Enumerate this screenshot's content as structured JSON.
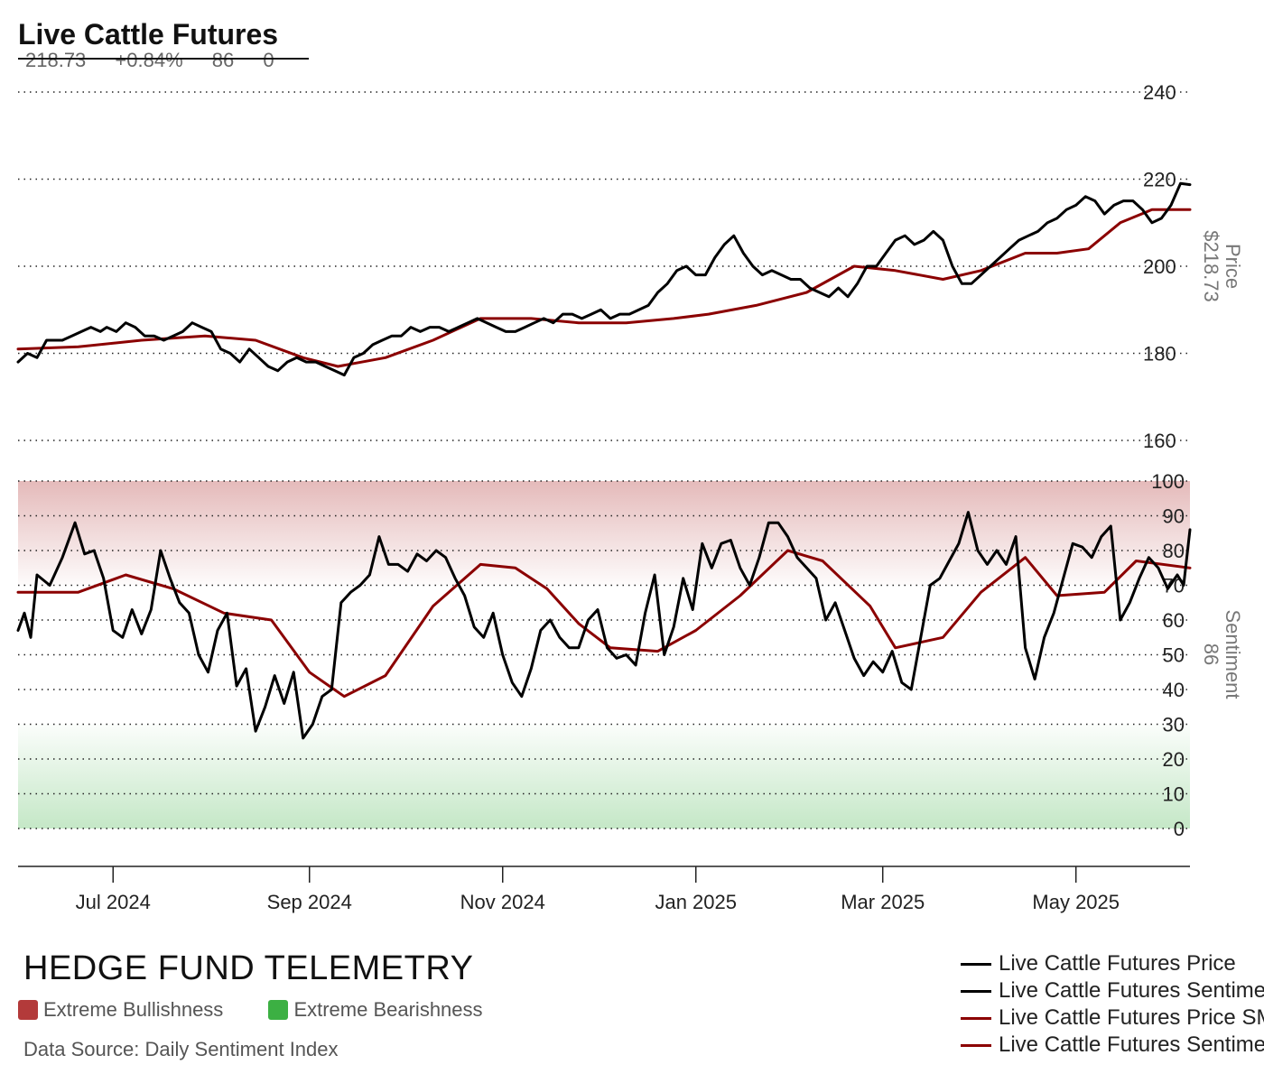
{
  "title": "Live Cattle Futures",
  "stats": [
    "218.73",
    "+0.84%",
    "86",
    "0"
  ],
  "brand": "HEDGE FUND TELEMETRY",
  "source": "Data Source: Daily Sentiment Index",
  "zones": {
    "bull": {
      "label": "Extreme Bullishness",
      "color": "#b33a3a"
    },
    "bear": {
      "label": "Extreme Bearishness",
      "color": "#3cb043"
    }
  },
  "legend": [
    {
      "label": "Live Cattle Futures Price",
      "color": "#000000"
    },
    {
      "label": "Live Cattle Futures Sentiment",
      "color": "#000000"
    },
    {
      "label": "Live Cattle Futures Price SMA",
      "color": "#8b0000"
    },
    {
      "label": "Live Cattle Futures Sentiment SMA",
      "color": "#8b0000"
    }
  ],
  "chart_data": [
    {
      "type": "line",
      "panel": "price",
      "ylabel": "Price",
      "last_value_label": "$218.73",
      "yticks": [
        160,
        180,
        200,
        220,
        240
      ],
      "ylim": [
        160,
        240
      ],
      "xlim": [
        "2024-06-01",
        "2025-06-06"
      ],
      "xticks": [
        {
          "date": "2024-07-01",
          "label": "Jul 2024"
        },
        {
          "date": "2024-09-01",
          "label": "Sep 2024"
        },
        {
          "date": "2024-11-01",
          "label": "Nov 2024"
        },
        {
          "date": "2025-01-01",
          "label": "Jan 2025"
        },
        {
          "date": "2025-03-01",
          "label": "Mar 2025"
        },
        {
          "date": "2025-05-01",
          "label": "May 2025"
        }
      ],
      "series": [
        {
          "name": "Live Cattle Futures Price",
          "color": "#000000",
          "x": [
            "2024-06-01",
            "2024-06-04",
            "2024-06-07",
            "2024-06-10",
            "2024-06-12",
            "2024-06-15",
            "2024-06-18",
            "2024-06-21",
            "2024-06-24",
            "2024-06-27",
            "2024-06-29",
            "2024-07-02",
            "2024-07-05",
            "2024-07-08",
            "2024-07-11",
            "2024-07-14",
            "2024-07-17",
            "2024-07-20",
            "2024-07-23",
            "2024-07-26",
            "2024-07-29",
            "2024-08-01",
            "2024-08-04",
            "2024-08-07",
            "2024-08-10",
            "2024-08-13",
            "2024-08-16",
            "2024-08-19",
            "2024-08-22",
            "2024-08-25",
            "2024-08-28",
            "2024-08-31",
            "2024-09-03",
            "2024-09-06",
            "2024-09-09",
            "2024-09-12",
            "2024-09-15",
            "2024-09-18",
            "2024-09-21",
            "2024-09-24",
            "2024-09-27",
            "2024-09-30",
            "2024-10-03",
            "2024-10-06",
            "2024-10-09",
            "2024-10-12",
            "2024-10-15",
            "2024-10-18",
            "2024-10-21",
            "2024-10-24",
            "2024-10-27",
            "2024-10-30",
            "2024-11-02",
            "2024-11-05",
            "2024-11-08",
            "2024-11-11",
            "2024-11-14",
            "2024-11-17",
            "2024-11-20",
            "2024-11-23",
            "2024-11-26",
            "2024-11-29",
            "2024-12-02",
            "2024-12-05",
            "2024-12-08",
            "2024-12-11",
            "2024-12-14",
            "2024-12-17",
            "2024-12-20",
            "2024-12-23",
            "2024-12-26",
            "2024-12-29",
            "2025-01-01",
            "2025-01-04",
            "2025-01-07",
            "2025-01-10",
            "2025-01-13",
            "2025-01-16",
            "2025-01-19",
            "2025-01-22",
            "2025-01-25",
            "2025-01-28",
            "2025-01-31",
            "2025-02-03",
            "2025-02-06",
            "2025-02-09",
            "2025-02-12",
            "2025-02-15",
            "2025-02-18",
            "2025-02-21",
            "2025-02-24",
            "2025-02-27",
            "2025-03-02",
            "2025-03-05",
            "2025-03-08",
            "2025-03-11",
            "2025-03-14",
            "2025-03-17",
            "2025-03-20",
            "2025-03-23",
            "2025-03-26",
            "2025-03-29",
            "2025-04-01",
            "2025-04-04",
            "2025-04-07",
            "2025-04-10",
            "2025-04-13",
            "2025-04-16",
            "2025-04-19",
            "2025-04-22",
            "2025-04-25",
            "2025-04-28",
            "2025-05-01",
            "2025-05-04",
            "2025-05-07",
            "2025-05-10",
            "2025-05-13",
            "2025-05-16",
            "2025-05-19",
            "2025-05-22",
            "2025-05-25",
            "2025-05-28",
            "2025-05-31",
            "2025-06-03",
            "2025-06-06"
          ],
          "values": [
            178,
            180,
            179,
            183,
            183,
            183,
            184,
            185,
            186,
            185,
            186,
            185,
            187,
            186,
            184,
            184,
            183,
            184,
            185,
            187,
            186,
            185,
            181,
            180,
            178,
            181,
            179,
            177,
            176,
            178,
            179,
            178,
            178,
            177,
            176,
            175,
            179,
            180,
            182,
            183,
            184,
            184,
            186,
            185,
            186,
            186,
            185,
            186,
            187,
            188,
            187,
            186,
            185,
            185,
            186,
            187,
            188,
            187,
            189,
            189,
            188,
            189,
            190,
            188,
            189,
            189,
            190,
            191,
            194,
            196,
            199,
            200,
            198,
            198,
            202,
            205,
            207,
            203,
            200,
            198,
            199,
            198,
            197,
            197,
            195,
            194,
            193,
            195,
            193,
            196,
            200,
            200,
            203,
            206,
            207,
            205,
            206,
            208,
            206,
            200,
            196,
            196,
            198,
            200,
            202,
            204,
            206,
            207,
            208,
            210,
            211,
            213,
            214,
            216,
            215,
            212,
            214,
            215,
            215,
            213,
            210,
            211,
            214,
            219,
            218.73
          ]
        },
        {
          "name": "Live Cattle Futures Price SMA",
          "color": "#8b0000",
          "x": [
            "2024-06-01",
            "2024-06-20",
            "2024-07-10",
            "2024-07-30",
            "2024-08-15",
            "2024-08-30",
            "2024-09-10",
            "2024-09-25",
            "2024-10-10",
            "2024-10-25",
            "2024-11-10",
            "2024-11-25",
            "2024-12-10",
            "2024-12-25",
            "2025-01-05",
            "2025-01-20",
            "2025-02-05",
            "2025-02-20",
            "2025-03-05",
            "2025-03-20",
            "2025-04-01",
            "2025-04-15",
            "2025-04-25",
            "2025-05-05",
            "2025-05-15",
            "2025-05-25",
            "2025-06-06"
          ],
          "values": [
            181,
            181.5,
            183,
            184,
            183,
            179,
            177,
            179,
            183,
            188,
            188,
            187,
            187,
            188,
            189,
            191,
            194,
            200,
            199,
            197,
            199,
            203,
            203,
            204,
            210,
            213,
            213
          ]
        }
      ]
    },
    {
      "type": "line",
      "panel": "sentiment",
      "ylabel": "Sentiment",
      "last_value_label": "86",
      "yticks": [
        0,
        10,
        20,
        30,
        40,
        50,
        60,
        70,
        80,
        90,
        100
      ],
      "ylim": [
        0,
        100
      ],
      "xlim": [
        "2024-06-01",
        "2025-06-06"
      ],
      "series": [
        {
          "name": "Live Cattle Futures Sentiment",
          "color": "#000000",
          "x": [
            "2024-06-01",
            "2024-06-03",
            "2024-06-05",
            "2024-06-07",
            "2024-06-11",
            "2024-06-15",
            "2024-06-19",
            "2024-06-22",
            "2024-06-25",
            "2024-06-28",
            "2024-07-01",
            "2024-07-04",
            "2024-07-07",
            "2024-07-10",
            "2024-07-13",
            "2024-07-16",
            "2024-07-19",
            "2024-07-22",
            "2024-07-25",
            "2024-07-28",
            "2024-07-31",
            "2024-08-03",
            "2024-08-06",
            "2024-08-09",
            "2024-08-12",
            "2024-08-15",
            "2024-08-18",
            "2024-08-21",
            "2024-08-24",
            "2024-08-27",
            "2024-08-30",
            "2024-09-02",
            "2024-09-05",
            "2024-09-08",
            "2024-09-11",
            "2024-09-14",
            "2024-09-17",
            "2024-09-20",
            "2024-09-23",
            "2024-09-26",
            "2024-09-29",
            "2024-10-02",
            "2024-10-05",
            "2024-10-08",
            "2024-10-11",
            "2024-10-14",
            "2024-10-17",
            "2024-10-20",
            "2024-10-23",
            "2024-10-26",
            "2024-10-29",
            "2024-11-01",
            "2024-11-04",
            "2024-11-07",
            "2024-11-10",
            "2024-11-13",
            "2024-11-16",
            "2024-11-19",
            "2024-11-22",
            "2024-11-25",
            "2024-11-28",
            "2024-12-01",
            "2024-12-04",
            "2024-12-07",
            "2024-12-10",
            "2024-12-13",
            "2024-12-16",
            "2024-12-19",
            "2024-12-22",
            "2024-12-25",
            "2024-12-28",
            "2024-12-31",
            "2025-01-03",
            "2025-01-06",
            "2025-01-09",
            "2025-01-12",
            "2025-01-15",
            "2025-01-18",
            "2025-01-21",
            "2025-01-24",
            "2025-01-27",
            "2025-01-30",
            "2025-02-02",
            "2025-02-05",
            "2025-02-08",
            "2025-02-11",
            "2025-02-14",
            "2025-02-17",
            "2025-02-20",
            "2025-02-23",
            "2025-02-26",
            "2025-03-01",
            "2025-03-04",
            "2025-03-07",
            "2025-03-10",
            "2025-03-13",
            "2025-03-16",
            "2025-03-19",
            "2025-03-22",
            "2025-03-25",
            "2025-03-28",
            "2025-03-31",
            "2025-04-03",
            "2025-04-06",
            "2025-04-09",
            "2025-04-12",
            "2025-04-15",
            "2025-04-18",
            "2025-04-21",
            "2025-04-24",
            "2025-04-27",
            "2025-04-30",
            "2025-05-03",
            "2025-05-06",
            "2025-05-09",
            "2025-05-12",
            "2025-05-15",
            "2025-05-18",
            "2025-05-21",
            "2025-05-24",
            "2025-05-27",
            "2025-05-30",
            "2025-06-02",
            "2025-06-04",
            "2025-06-06"
          ],
          "values": [
            57,
            62,
            55,
            73,
            70,
            78,
            88,
            79,
            80,
            72,
            57,
            55,
            63,
            56,
            63,
            80,
            72,
            65,
            62,
            50,
            45,
            57,
            62,
            41,
            46,
            28,
            35,
            44,
            36,
            45,
            26,
            30,
            38,
            40,
            65,
            68,
            70,
            73,
            84,
            76,
            76,
            74,
            79,
            77,
            80,
            78,
            72,
            67,
            58,
            55,
            62,
            50,
            42,
            38,
            46,
            57,
            60,
            55,
            52,
            52,
            60,
            63,
            52,
            49,
            50,
            47,
            62,
            73,
            50,
            58,
            72,
            63,
            82,
            75,
            82,
            83,
            75,
            70,
            78,
            88,
            88,
            84,
            78,
            75,
            72,
            60,
            65,
            57,
            49,
            44,
            48,
            45,
            51,
            42,
            40,
            55,
            70,
            72,
            77,
            82,
            91,
            80,
            76,
            80,
            76,
            84,
            52,
            43,
            55,
            62,
            72,
            82,
            81,
            78,
            84,
            87,
            60,
            65,
            72,
            78,
            75,
            69,
            73,
            70,
            86
          ]
        },
        {
          "name": "Live Cattle Futures Sentiment SMA",
          "color": "#8b0000",
          "x": [
            "2024-06-01",
            "2024-06-20",
            "2024-07-05",
            "2024-07-20",
            "2024-08-05",
            "2024-08-20",
            "2024-09-01",
            "2024-09-12",
            "2024-09-25",
            "2024-10-10",
            "2024-10-25",
            "2024-11-05",
            "2024-11-15",
            "2024-11-25",
            "2024-12-05",
            "2024-12-20",
            "2025-01-01",
            "2025-01-15",
            "2025-01-30",
            "2025-02-10",
            "2025-02-25",
            "2025-03-05",
            "2025-03-20",
            "2025-04-01",
            "2025-04-15",
            "2025-04-25",
            "2025-05-10",
            "2025-05-20",
            "2025-06-06"
          ],
          "values": [
            68,
            68,
            73,
            69,
            62,
            60,
            45,
            38,
            44,
            64,
            76,
            75,
            69,
            59,
            52,
            51,
            57,
            67,
            80,
            77,
            64,
            52,
            55,
            68,
            78,
            67,
            68,
            77,
            75
          ]
        }
      ]
    }
  ]
}
